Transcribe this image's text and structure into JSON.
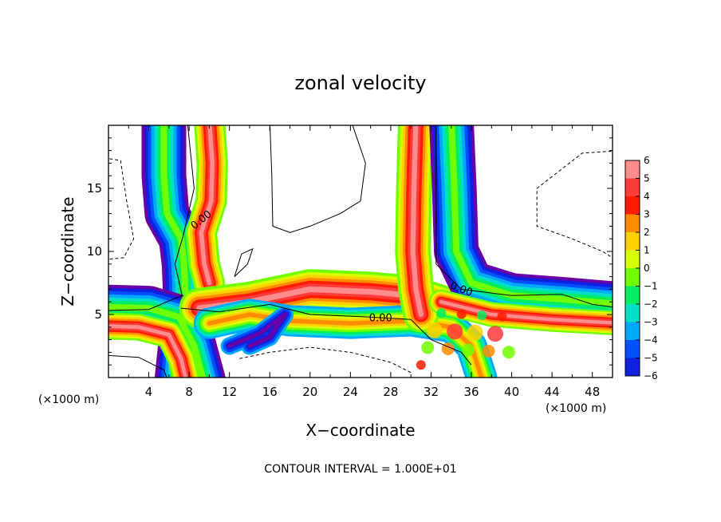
{
  "chart_data": {
    "type": "heatmap",
    "title": "zonal velocity",
    "xlabel": "X−coordinate",
    "ylabel": "Z−coordinate",
    "x_unit": "(×1000 m)",
    "z_unit": "(×1000 m)",
    "xlim": [
      0,
      50
    ],
    "ylim": [
      0,
      20
    ],
    "x_ticks": [
      {
        "value": 4,
        "label": "4"
      },
      {
        "value": 8,
        "label": "8"
      },
      {
        "value": 12,
        "label": "12"
      },
      {
        "value": 16,
        "label": "16"
      },
      {
        "value": 20,
        "label": "20"
      },
      {
        "value": 24,
        "label": "24"
      },
      {
        "value": 28,
        "label": "28"
      },
      {
        "value": 32,
        "label": "32"
      },
      {
        "value": 36,
        "label": "36"
      },
      {
        "value": 40,
        "label": "40"
      },
      {
        "value": 44,
        "label": "44"
      },
      {
        "value": 48,
        "label": "48"
      }
    ],
    "y_ticks": [
      {
        "value": 5,
        "label": "5"
      },
      {
        "value": 10,
        "label": "10"
      },
      {
        "value": 15,
        "label": "15"
      }
    ],
    "colorbar": {
      "labels": [
        "6",
        "5",
        "4",
        "3",
        "2",
        "1",
        "0",
        "−1",
        "−2",
        "−3",
        "−4",
        "−5",
        "−6"
      ],
      "colors": [
        "#ff8c8c",
        "#ff3a3a",
        "#ff1a00",
        "#ff8c00",
        "#ffd000",
        "#d8ff00",
        "#70ff00",
        "#00ee60",
        "#00e0c8",
        "#00a8ff",
        "#0050ff",
        "#1020e0",
        "#6a00a8"
      ]
    },
    "contour_labels": [
      {
        "text": "0.00",
        "x": 9.2,
        "z": 12.5,
        "angle": -38
      },
      {
        "text": "0.00",
        "x": 27.0,
        "z": 4.7,
        "angle": 0
      },
      {
        "text": "0.00",
        "x": 35.0,
        "z": 7.0,
        "angle": 20
      }
    ],
    "footnote": "CONTOUR INTERVAL = 1.000E+01"
  }
}
